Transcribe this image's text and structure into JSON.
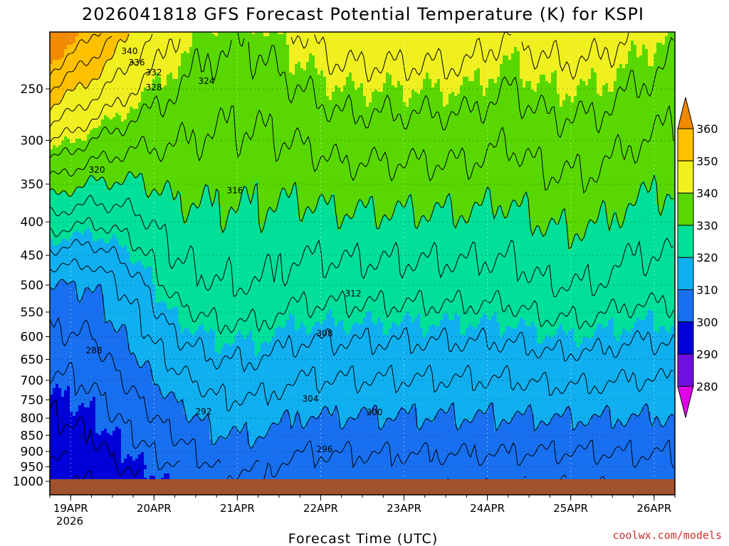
{
  "chart_data": {
    "type": "heatmap",
    "title": "2026041818 GFS Forecast Potential Temperature (K) for KSPI",
    "xlabel": "Forecast Time (UTC)",
    "ylabel": "",
    "credit": "coolwx.com/models",
    "pressure_levels": [
      "250",
      "300",
      "350",
      "400",
      "450",
      "500",
      "550",
      "600",
      "650",
      "700",
      "750",
      "800",
      "850",
      "900",
      "950",
      "1000"
    ],
    "x_ticks": [
      "19APR",
      "20APR",
      "21APR",
      "22APR",
      "23APR",
      "24APR",
      "25APR",
      "26APR"
    ],
    "x_year": "2026",
    "colorbar": {
      "labels": [
        "360",
        "350",
        "340",
        "330",
        "320",
        "310",
        "300",
        "290",
        "280"
      ],
      "bands": [
        {
          "lo": 350,
          "hi": 360,
          "color": "#f08a00"
        },
        {
          "lo": 340,
          "hi": 350,
          "color": "#ffc000"
        },
        {
          "lo": 330,
          "hi": 340,
          "color": "#f0f020"
        },
        {
          "lo": 320,
          "hi": 330,
          "color": "#58d800"
        },
        {
          "lo": 310,
          "hi": 320,
          "color": "#00e098"
        },
        {
          "lo": 300,
          "hi": 310,
          "color": "#10b0f0"
        },
        {
          "lo": 290,
          "hi": 300,
          "color": "#1870f0"
        },
        {
          "lo": 280,
          "hi": 290,
          "color": "#0000d8"
        },
        {
          "lo": 270,
          "hi": 280,
          "color": "#7010e0"
        },
        {
          "lo": 260,
          "hi": 270,
          "color": "#e000e8"
        }
      ]
    },
    "ground_color": "#a0522d",
    "contour_labels": [
      "340",
      "336",
      "332",
      "328",
      "324",
      "320",
      "316",
      "312",
      "308",
      "304",
      "300",
      "296",
      "292",
      "288"
    ],
    "isentrope_profile": {
      "hours": [
        0,
        12,
        24,
        36,
        48,
        60,
        72,
        84,
        96,
        108,
        120,
        132,
        144,
        156,
        168,
        180
      ],
      "theta_at_250": [
        344,
        338,
        332,
        328,
        326,
        326,
        328,
        330,
        330,
        330,
        330,
        328,
        330,
        330,
        328,
        326
      ],
      "theta_at_500": [
        300,
        300,
        306,
        314,
        316,
        316,
        314,
        314,
        314,
        314,
        314,
        314,
        316,
        316,
        314,
        314
      ],
      "theta_at_850": [
        286,
        288,
        292,
        296,
        300,
        300,
        298,
        298,
        298,
        298,
        298,
        298,
        298,
        298,
        298,
        298
      ]
    }
  }
}
